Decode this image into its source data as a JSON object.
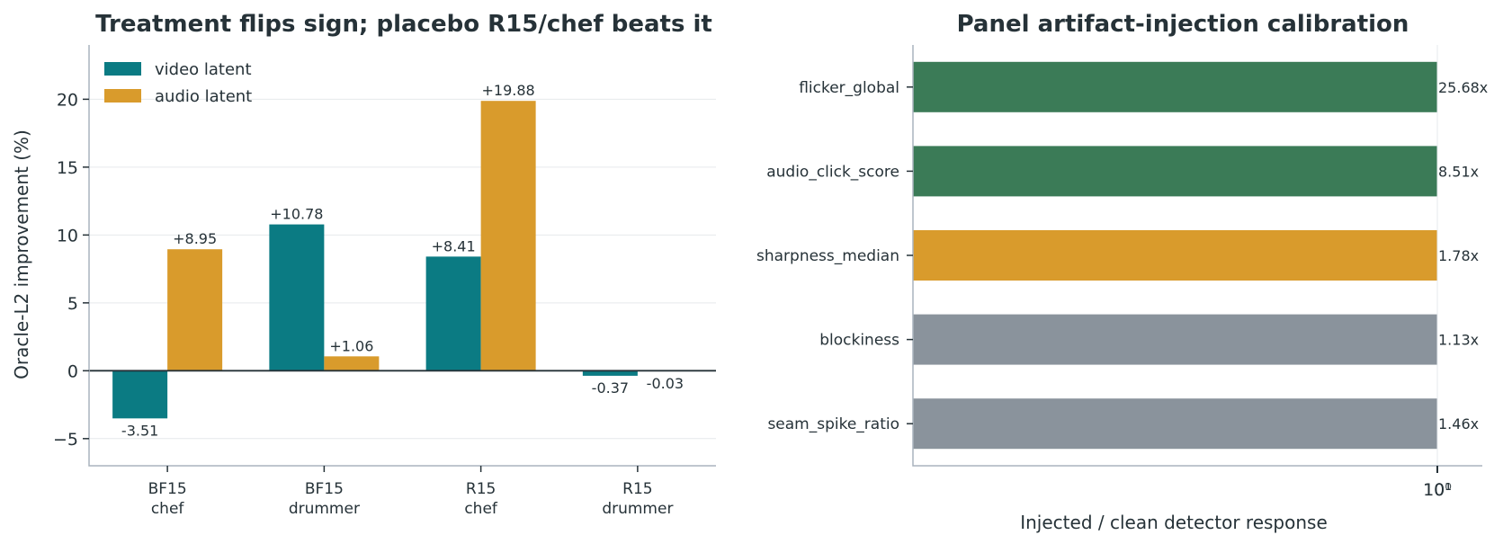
{
  "colors": {
    "video": "#0b7b83",
    "audio": "#d99b2c",
    "green": "#3b7b57",
    "gray": "#8a939c",
    "text": "#263238"
  },
  "chart_data": [
    {
      "type": "bar",
      "title": "Treatment flips sign; placebo R15/chef beats it",
      "ylabel": "Oracle-L2 improvement (%)",
      "xlabel": "",
      "ylim": [
        -7,
        24
      ],
      "yticks": [
        -5,
        0,
        5,
        10,
        15,
        20
      ],
      "ytick_labels": [
        "−5",
        "0",
        "5",
        "10",
        "15",
        "20"
      ],
      "grid": "horizontal",
      "legend_position": "top-left",
      "categories": [
        [
          "BF15",
          "chef"
        ],
        [
          "BF15",
          "drummer"
        ],
        [
          "R15",
          "chef"
        ],
        [
          "R15",
          "drummer"
        ]
      ],
      "series": [
        {
          "name": "video latent",
          "color_key": "video",
          "values": [
            -3.51,
            10.78,
            8.41,
            -0.37
          ],
          "labels": [
            "-3.51",
            "+10.78",
            "+8.41",
            "-0.37"
          ]
        },
        {
          "name": "audio latent",
          "color_key": "audio",
          "values": [
            8.95,
            1.06,
            19.88,
            -0.03
          ],
          "labels": [
            "+8.95",
            "+1.06",
            "+19.88",
            "-0.03"
          ]
        }
      ]
    },
    {
      "type": "bar",
      "orientation": "horizontal",
      "title": "Panel artifact-injection calibration",
      "xlabel": "Injected / clean detector response",
      "ylabel": "",
      "x_scale": "log",
      "xtick_labels": [
        "10¹",
        "10⁰"
      ],
      "categories": [
        "flicker_global",
        "audio_click_score",
        "sharpness_median",
        "blockiness",
        "seam_spike_ratio"
      ],
      "values": [
        25.68,
        8.51,
        1.78,
        1.13,
        1.46
      ],
      "labels": [
        "25.68x",
        "8.51x",
        "1.78x",
        "1.13x",
        "1.46x"
      ],
      "color_keys": [
        "green",
        "green",
        "audio",
        "gray",
        "gray"
      ]
    }
  ]
}
